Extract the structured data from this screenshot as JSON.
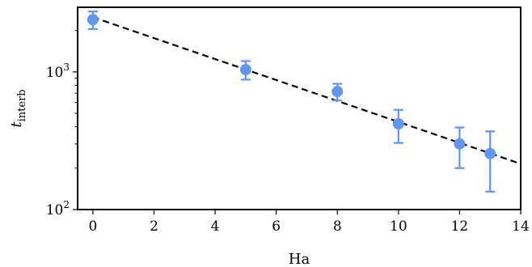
{
  "chart_data": {
    "type": "scatter",
    "xlabel": "Ha",
    "ylabel": {
      "base": "t",
      "subscript": "interb"
    },
    "xlim": [
      -0.5,
      14
    ],
    "ylim": [
      100,
      2950
    ],
    "yscale": "log",
    "grid": false,
    "x_ticks": [
      0,
      2,
      4,
      6,
      8,
      10,
      12,
      14
    ],
    "x_tick_labels": [
      "0",
      "2",
      "4",
      "6",
      "8",
      "10",
      "12",
      "14"
    ],
    "y_ticks": [
      100,
      1000
    ],
    "y_tick_labels": [
      {
        "base": "10",
        "exp": "2"
      },
      {
        "base": "10",
        "exp": "3"
      }
    ],
    "points": [
      {
        "x": 0,
        "y": 2400,
        "yerr_low": 2050,
        "yerr_high": 2750
      },
      {
        "x": 5,
        "y": 1040,
        "yerr_low": 880,
        "yerr_high": 1200
      },
      {
        "x": 8,
        "y": 720,
        "yerr_low": 620,
        "yerr_high": 820
      },
      {
        "x": 10,
        "y": 420,
        "yerr_low": 305,
        "yerr_high": 530
      },
      {
        "x": 12,
        "y": 300,
        "yerr_low": 200,
        "yerr_high": 395
      },
      {
        "x": 13,
        "y": 255,
        "yerr_low": 135,
        "yerr_high": 370
      }
    ],
    "fit_line": {
      "x": [
        0,
        14
      ],
      "y": [
        2500,
        215
      ],
      "style": "dashed"
    },
    "colors": {
      "points": "#6495ed",
      "fit_line": "#000000"
    }
  }
}
